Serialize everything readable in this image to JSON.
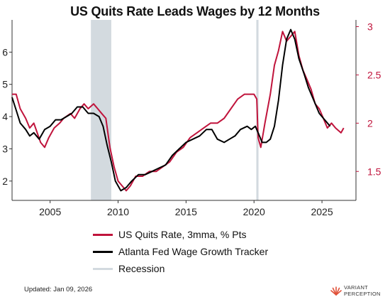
{
  "title": "US Quits Rate Leads Wages by 12 Months",
  "chart_data": {
    "type": "line",
    "title": "US Quits Rate Leads Wages by 12 Months",
    "x_ticks": [
      2005,
      2010,
      2015,
      2020,
      2025
    ],
    "xlim": [
      2002.2,
      2027.5
    ],
    "y_left": {
      "lim": [
        1.4,
        7.0
      ],
      "ticks": [
        2,
        3,
        4,
        5,
        6
      ]
    },
    "y_right": {
      "lim": [
        1.2,
        3.07
      ],
      "ticks": [
        1.5,
        2,
        2.5,
        3
      ],
      "tick_labels": [
        "1.5",
        "2",
        "2.5",
        "3"
      ],
      "color": "#c0143c"
    },
    "recessions": [
      [
        2008.0,
        2009.5
      ],
      [
        2020.17,
        2020.33
      ]
    ],
    "recession_color": "#d3dadf",
    "series": [
      {
        "name": "US Quits Rate, 3mma, % Pts",
        "axis": "right",
        "color": "#c0143c",
        "points": [
          [
            2002.2,
            2.3
          ],
          [
            2002.5,
            2.3
          ],
          [
            2002.8,
            2.15
          ],
          [
            2003.2,
            2.05
          ],
          [
            2003.5,
            1.95
          ],
          [
            2003.8,
            2.0
          ],
          [
            2004.3,
            1.8
          ],
          [
            2004.6,
            1.75
          ],
          [
            2004.9,
            1.85
          ],
          [
            2005.3,
            1.95
          ],
          [
            2005.7,
            2.0
          ],
          [
            2006.0,
            2.05
          ],
          [
            2006.5,
            2.1
          ],
          [
            2006.8,
            2.05
          ],
          [
            2007.2,
            2.15
          ],
          [
            2007.5,
            2.2
          ],
          [
            2007.8,
            2.15
          ],
          [
            2008.2,
            2.2
          ],
          [
            2008.5,
            2.15
          ],
          [
            2008.8,
            2.1
          ],
          [
            2009.1,
            2.05
          ],
          [
            2009.4,
            1.75
          ],
          [
            2009.7,
            1.55
          ],
          [
            2010.0,
            1.4
          ],
          [
            2010.3,
            1.35
          ],
          [
            2010.6,
            1.3
          ],
          [
            2010.9,
            1.35
          ],
          [
            2011.3,
            1.45
          ],
          [
            2011.8,
            1.45
          ],
          [
            2012.3,
            1.5
          ],
          [
            2012.8,
            1.5
          ],
          [
            2013.3,
            1.55
          ],
          [
            2013.8,
            1.6
          ],
          [
            2014.3,
            1.7
          ],
          [
            2014.8,
            1.75
          ],
          [
            2015.3,
            1.85
          ],
          [
            2015.8,
            1.9
          ],
          [
            2016.3,
            1.95
          ],
          [
            2016.8,
            2.0
          ],
          [
            2017.3,
            2.0
          ],
          [
            2017.8,
            2.05
          ],
          [
            2018.3,
            2.15
          ],
          [
            2018.8,
            2.25
          ],
          [
            2019.3,
            2.3
          ],
          [
            2019.8,
            2.3
          ],
          [
            2020.0,
            2.3
          ],
          [
            2020.2,
            2.25
          ],
          [
            2020.3,
            1.85
          ],
          [
            2020.5,
            1.75
          ],
          [
            2020.8,
            2.0
          ],
          [
            2021.2,
            2.3
          ],
          [
            2021.5,
            2.6
          ],
          [
            2021.8,
            2.75
          ],
          [
            2022.1,
            2.95
          ],
          [
            2022.4,
            2.85
          ],
          [
            2022.7,
            2.9
          ],
          [
            2023.0,
            2.95
          ],
          [
            2023.3,
            2.7
          ],
          [
            2023.6,
            2.55
          ],
          [
            2023.9,
            2.45
          ],
          [
            2024.2,
            2.35
          ],
          [
            2024.5,
            2.2
          ],
          [
            2024.8,
            2.15
          ],
          [
            2025.1,
            2.05
          ],
          [
            2025.4,
            1.95
          ],
          [
            2025.7,
            2.0
          ],
          [
            2026.0,
            1.95
          ],
          [
            2026.4,
            1.9
          ],
          [
            2026.6,
            1.95
          ]
        ]
      },
      {
        "name": "Atlanta Fed Wage Growth Tracker",
        "axis": "left",
        "color": "#000000",
        "points": [
          [
            2002.2,
            4.6
          ],
          [
            2002.5,
            4.2
          ],
          [
            2002.8,
            3.8
          ],
          [
            2003.2,
            3.6
          ],
          [
            2003.5,
            3.4
          ],
          [
            2003.8,
            3.5
          ],
          [
            2004.2,
            3.3
          ],
          [
            2004.6,
            3.6
          ],
          [
            2005.0,
            3.7
          ],
          [
            2005.4,
            3.9
          ],
          [
            2005.8,
            3.9
          ],
          [
            2006.2,
            4.0
          ],
          [
            2006.6,
            4.1
          ],
          [
            2007.0,
            4.3
          ],
          [
            2007.4,
            4.3
          ],
          [
            2007.8,
            4.1
          ],
          [
            2008.2,
            4.1
          ],
          [
            2008.6,
            4.0
          ],
          [
            2008.9,
            3.7
          ],
          [
            2009.2,
            3.1
          ],
          [
            2009.5,
            2.6
          ],
          [
            2009.8,
            2.0
          ],
          [
            2010.2,
            1.7
          ],
          [
            2010.6,
            1.8
          ],
          [
            2011.0,
            2.0
          ],
          [
            2011.5,
            2.2
          ],
          [
            2012.0,
            2.2
          ],
          [
            2012.5,
            2.3
          ],
          [
            2013.0,
            2.4
          ],
          [
            2013.5,
            2.5
          ],
          [
            2014.0,
            2.8
          ],
          [
            2014.5,
            3.0
          ],
          [
            2015.0,
            3.2
          ],
          [
            2015.5,
            3.3
          ],
          [
            2016.0,
            3.4
          ],
          [
            2016.5,
            3.6
          ],
          [
            2016.9,
            3.6
          ],
          [
            2017.3,
            3.3
          ],
          [
            2017.8,
            3.2
          ],
          [
            2018.2,
            3.3
          ],
          [
            2018.6,
            3.4
          ],
          [
            2019.0,
            3.6
          ],
          [
            2019.5,
            3.7
          ],
          [
            2019.8,
            3.6
          ],
          [
            2020.1,
            3.7
          ],
          [
            2020.3,
            3.5
          ],
          [
            2020.6,
            3.2
          ],
          [
            2020.9,
            3.2
          ],
          [
            2021.2,
            3.3
          ],
          [
            2021.5,
            3.7
          ],
          [
            2021.8,
            4.5
          ],
          [
            2022.1,
            5.6
          ],
          [
            2022.4,
            6.4
          ],
          [
            2022.7,
            6.7
          ],
          [
            2023.0,
            6.4
          ],
          [
            2023.3,
            5.8
          ],
          [
            2023.7,
            5.3
          ],
          [
            2024.0,
            4.9
          ],
          [
            2024.4,
            4.5
          ],
          [
            2024.8,
            4.1
          ],
          [
            2025.2,
            3.9
          ],
          [
            2025.6,
            3.7
          ]
        ]
      }
    ],
    "legend": [
      {
        "label": "US Quits Rate, 3mma, % Pts",
        "color": "#c0143c"
      },
      {
        "label": "Atlanta Fed Wage Growth Tracker",
        "color": "#000000"
      },
      {
        "label": "Recession",
        "color": "#d3dadf"
      }
    ]
  },
  "footer": {
    "updated": "Updated: Jan 09, 2026",
    "brand_line1": "VARIANT",
    "brand_line2": "PERCEPTION"
  }
}
